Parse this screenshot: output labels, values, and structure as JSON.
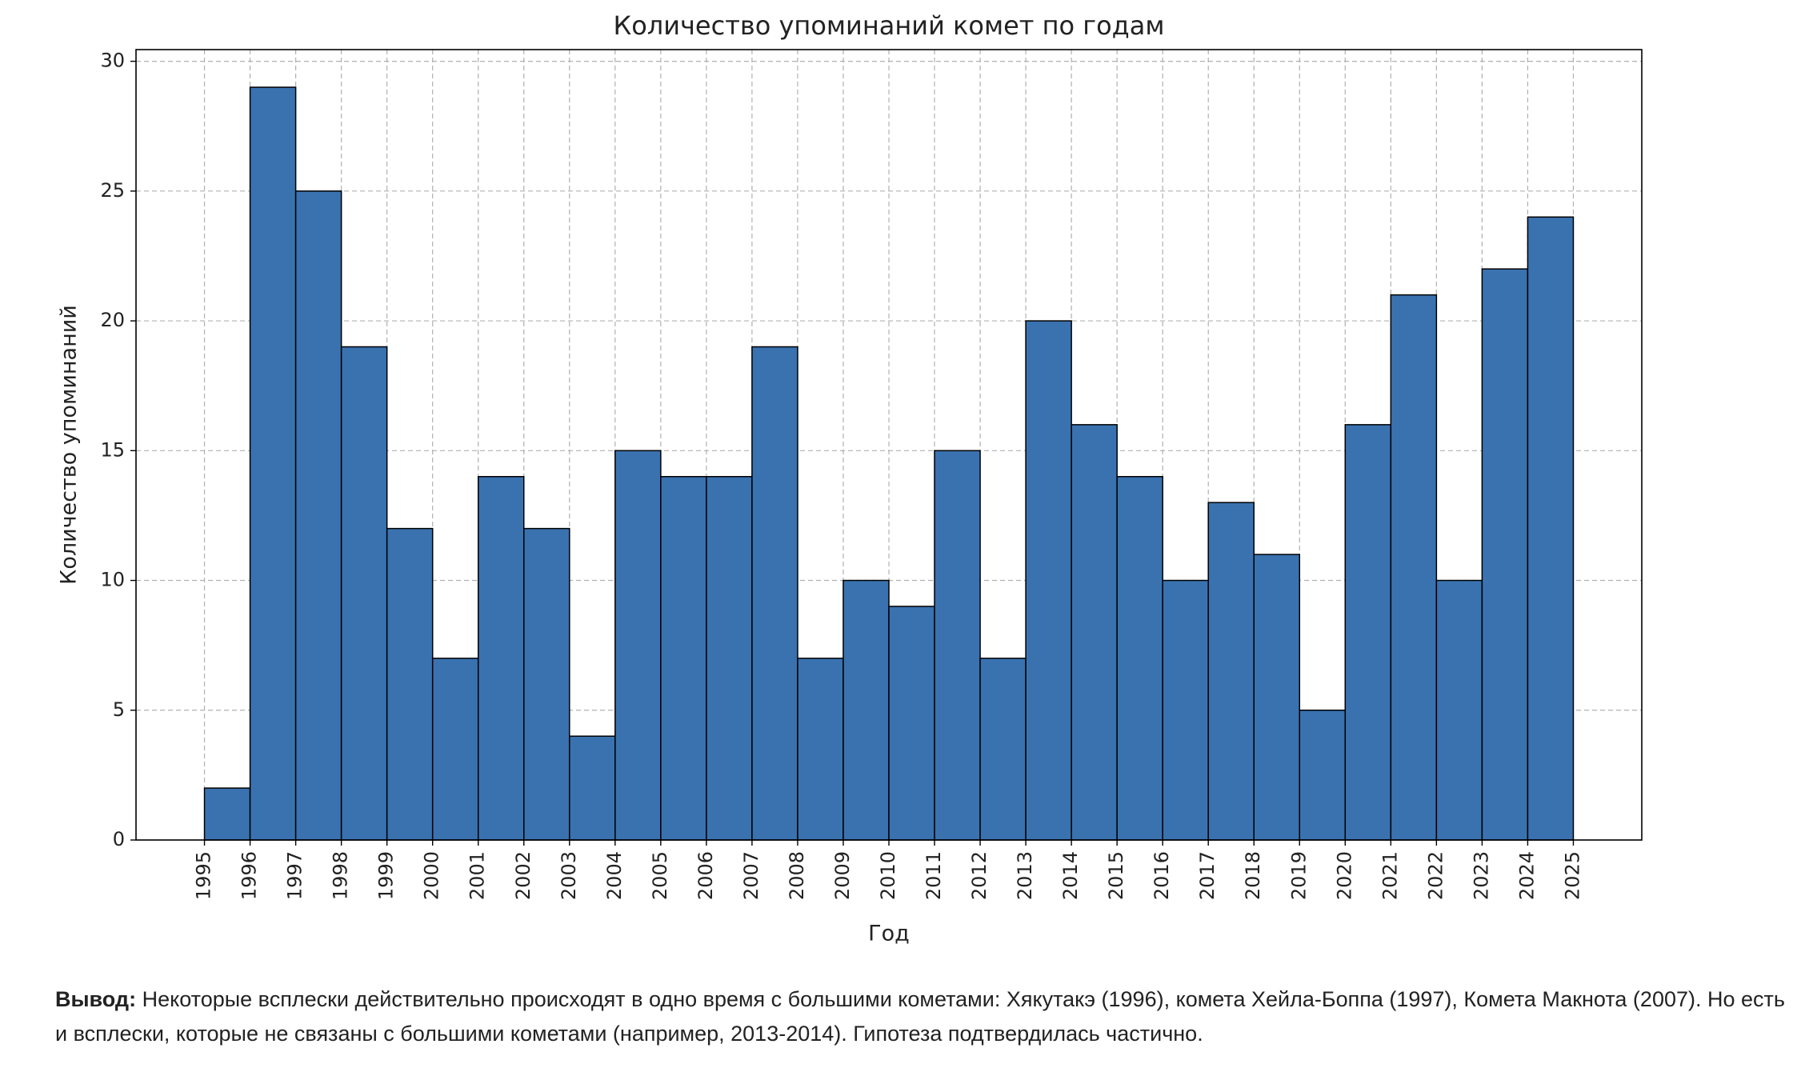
{
  "chart_data": {
    "type": "histogram",
    "title": "Количество упоминаний комет по годам",
    "xlabel": "Год",
    "ylabel": "Количество упоминаний",
    "bins": [
      1995,
      1996,
      1997,
      1998,
      1999,
      2000,
      2001,
      2002,
      2003,
      2004,
      2005,
      2006,
      2007,
      2008,
      2009,
      2010,
      2011,
      2012,
      2013,
      2014,
      2015,
      2016,
      2017,
      2018,
      2019,
      2020,
      2021,
      2022,
      2023,
      2024,
      2025
    ],
    "counts": [
      2,
      29,
      25,
      19,
      12,
      7,
      14,
      12,
      4,
      15,
      14,
      14,
      19,
      7,
      10,
      9,
      15,
      7,
      20,
      16,
      14,
      10,
      13,
      11,
      5,
      16,
      21,
      10,
      22,
      24
    ],
    "color": "#3a72b0",
    "edgecolor": "#000000",
    "xlim": [
      1993.5,
      2026.5
    ],
    "xticks": [
      1995,
      1996,
      1997,
      1998,
      1999,
      2000,
      2001,
      2002,
      2003,
      2004,
      2005,
      2006,
      2007,
      2008,
      2009,
      2010,
      2011,
      2012,
      2013,
      2014,
      2015,
      2016,
      2017,
      2018,
      2019,
      2020,
      2021,
      2022,
      2023,
      2024,
      2025
    ],
    "ylim": [
      0,
      30.45
    ],
    "yticks": [
      0,
      5,
      10,
      15,
      20,
      25,
      30
    ],
    "grid": true
  },
  "conclusion": {
    "label": "Вывод:",
    "text": "Некоторые всплески действительно происходят в одно время с большими кометами: Хякутакэ (1996), комета Хейла-Боппа (1997), Комета Макнота (2007). Но есть и всплески, которые не связаны с большими кометами (например, 2013-2014). Гипотеза подтвердилась частично."
  }
}
